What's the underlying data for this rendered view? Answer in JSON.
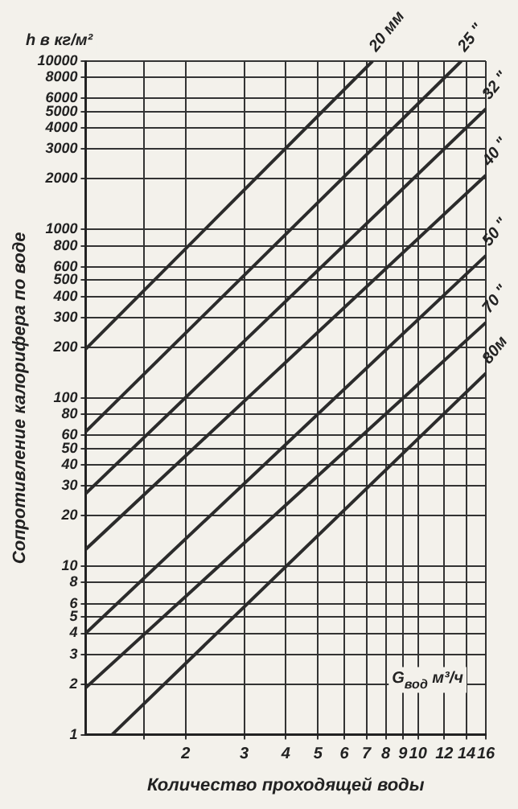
{
  "chart_data": {
    "type": "line",
    "xlabel": "Количество проходящей воды",
    "ylabel": "Сопротивление калорифера по воде",
    "annotations": [
      "h в кг/м²",
      "G$_{вод}$ м³/ч"
    ],
    "log": "xy",
    "grid": true,
    "legend": false,
    "marker": "none",
    "line_style": "solid",
    "xlim": [
      1,
      16
    ],
    "ylim": [
      1,
      10000
    ],
    "xticks": [
      {
        "value": 1.5,
        "label": null
      },
      2,
      3,
      4,
      5,
      6,
      7,
      8,
      9,
      10,
      12,
      14,
      16
    ],
    "yticks": [
      1,
      2,
      3,
      4,
      5,
      6,
      8,
      10,
      20,
      30,
      40,
      50,
      60,
      80,
      100,
      200,
      300,
      400,
      500,
      600,
      800,
      1000,
      2000,
      3000,
      4000,
      5000,
      6000,
      8000,
      10000
    ],
    "series": [
      {
        "name": "20 мм",
        "color": "#2b2b2b",
        "x": [
          1,
          7.3
        ],
        "values": [
          195,
          10000
        ]
      },
      {
        "name": "25 \"",
        "color": "#2b2b2b",
        "x": [
          1,
          13.5
        ],
        "values": [
          63,
          10000
        ]
      },
      {
        "name": "32 \"",
        "color": "#2b2b2b",
        "x": [
          1,
          16
        ],
        "values": [
          27,
          5200
        ]
      },
      {
        "name": "40 \"",
        "color": "#2b2b2b",
        "x": [
          1,
          16
        ],
        "values": [
          12.6,
          2100
        ]
      },
      {
        "name": "50 \"",
        "color": "#2b2b2b",
        "x": [
          1,
          16
        ],
        "values": [
          4,
          700
        ]
      },
      {
        "name": "70 \"",
        "color": "#2b2b2b",
        "x": [
          1,
          16
        ],
        "values": [
          1.9,
          280
        ]
      },
      {
        "name": "80м",
        "color": "#2b2b2b",
        "x": [
          1.2,
          16
        ],
        "values": [
          1,
          140
        ]
      }
    ]
  }
}
